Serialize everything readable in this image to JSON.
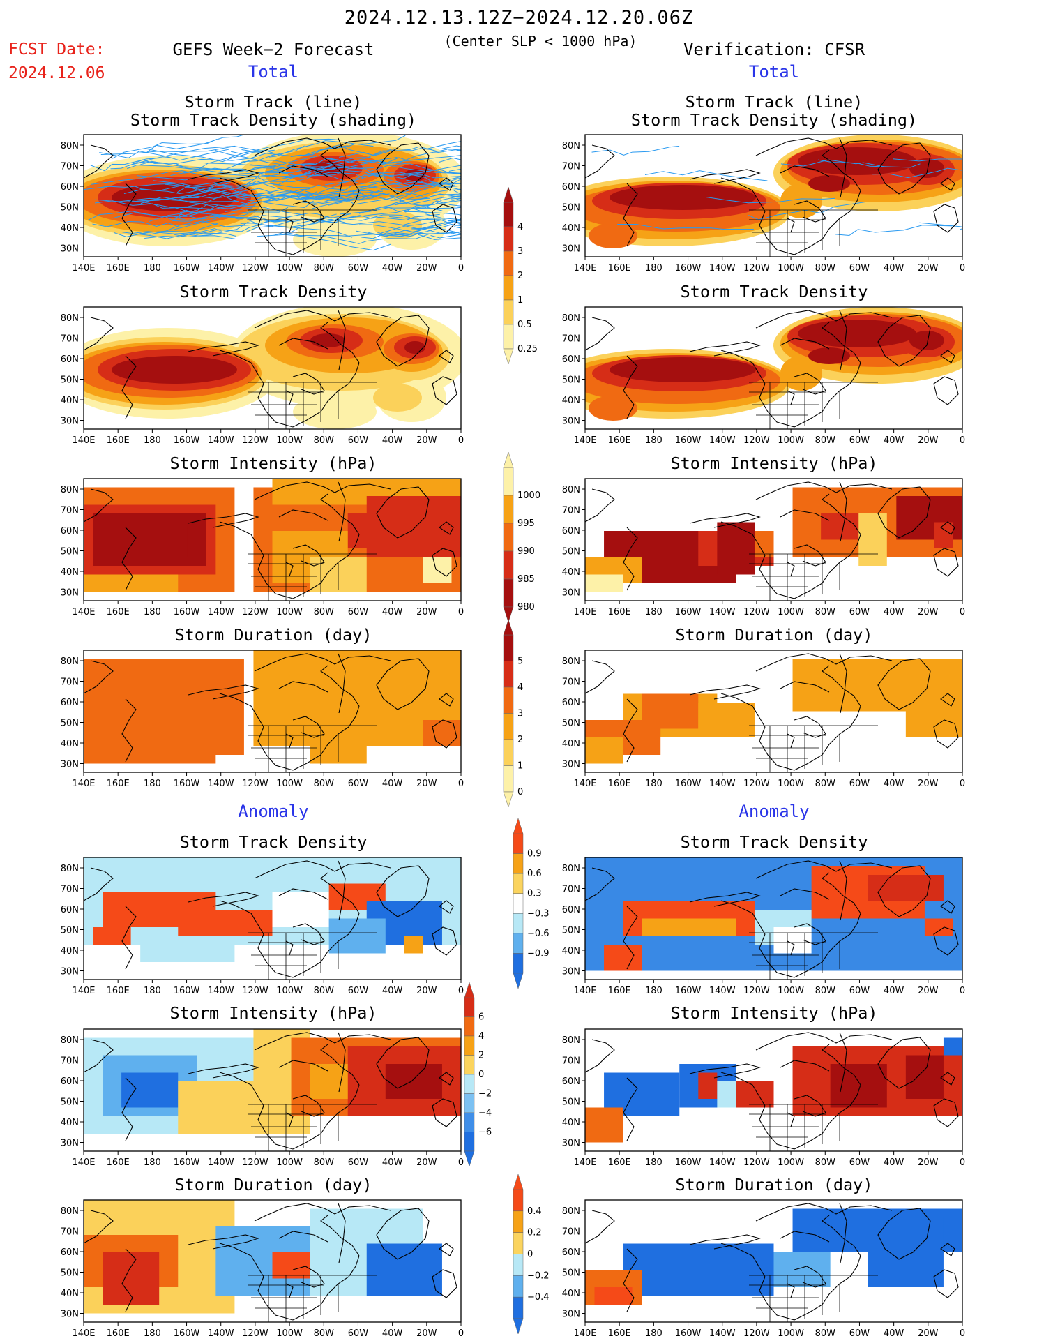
{
  "header": {
    "period": "2024.12.13.12Z−2024.12.20.06Z",
    "criterion": "(Center SLP < 1000 hPa)",
    "fcst_label": "FCST Date:",
    "fcst_date": "2024.12.06",
    "left_title": "GEFS Week−2 Forecast",
    "right_title": "Verification: CFSR",
    "total_label": "Total",
    "anomaly_label": "Anomaly"
  },
  "panels": {
    "track_title_1": "Storm Track (line)",
    "track_title_2": "Storm Track Density (shading)",
    "density_title": "Storm Track Density",
    "intensity_title": "Storm Intensity (hPa)",
    "duration_title": "Storm Duration (day)"
  },
  "axes": {
    "lon_labels": [
      "140E",
      "160E",
      "180",
      "160W",
      "140W",
      "120W",
      "100W",
      "80W",
      "60W",
      "40W",
      "20W",
      "0"
    ],
    "lat_labels": [
      "80N",
      "70N",
      "60N",
      "50N",
      "40N",
      "30N"
    ]
  },
  "colorbars": {
    "density_total": {
      "labels": [
        "4",
        "3",
        "2",
        "1",
        "0.5",
        "0.25"
      ],
      "colors": [
        "#a50f0f",
        "#d62d17",
        "#f06a12",
        "#f6a216",
        "#fbd15a",
        "#fdf1a8"
      ]
    },
    "intensity_total": {
      "labels": [
        "1000",
        "995",
        "990",
        "985",
        "980"
      ],
      "colors": [
        "#fdf1a8",
        "#f6a216",
        "#f06a12",
        "#d62d17",
        "#a50f0f"
      ]
    },
    "duration_total": {
      "labels": [
        "5",
        "4",
        "3",
        "2",
        "1",
        "0"
      ],
      "colors": [
        "#a50f0f",
        "#d62d17",
        "#f06a12",
        "#f6a216",
        "#fbd15a",
        "#fdf1a8"
      ]
    },
    "density_anom": {
      "labels": [
        "0.9",
        "0.6",
        "0.3",
        "−0.3",
        "−0.6",
        "−0.9"
      ],
      "colors": [
        "#f54a18",
        "#f6a216",
        "#fbd45e",
        "#ffffff",
        "#b7e8f6",
        "#5fb0ee",
        "#1f6fe0"
      ]
    },
    "intensity_anom": {
      "labels": [
        "6",
        "4",
        "2",
        "0",
        "−2",
        "−4",
        "−6"
      ],
      "colors": [
        "#d62d17",
        "#f06a12",
        "#f6a216",
        "#fbd45e",
        "#b7e8f6",
        "#7cc1f2",
        "#3f8ee8",
        "#1f6fe0"
      ]
    },
    "duration_anom": {
      "labels": [
        "0.4",
        "0.2",
        "0",
        "−0.2",
        "−0.4"
      ],
      "colors": [
        "#f54a18",
        "#f6a216",
        "#fbd45e",
        "#b7e8f6",
        "#5fb0ee",
        "#1f6fe0"
      ]
    }
  },
  "palette": {
    "dark_red": "#a50f0f",
    "red": "#d62d17",
    "orange": "#f06a12",
    "amber": "#f6a216",
    "yellow": "#fbd15a",
    "light_yellow": "#fdf1a8",
    "light_blue": "#b7e8f6",
    "mid_blue": "#5fb0ee",
    "blue": "#1f6fe0",
    "track_line": "#2a9af0",
    "anomaly_text": "#2a35e8",
    "fcst_text": "#e8231b"
  }
}
